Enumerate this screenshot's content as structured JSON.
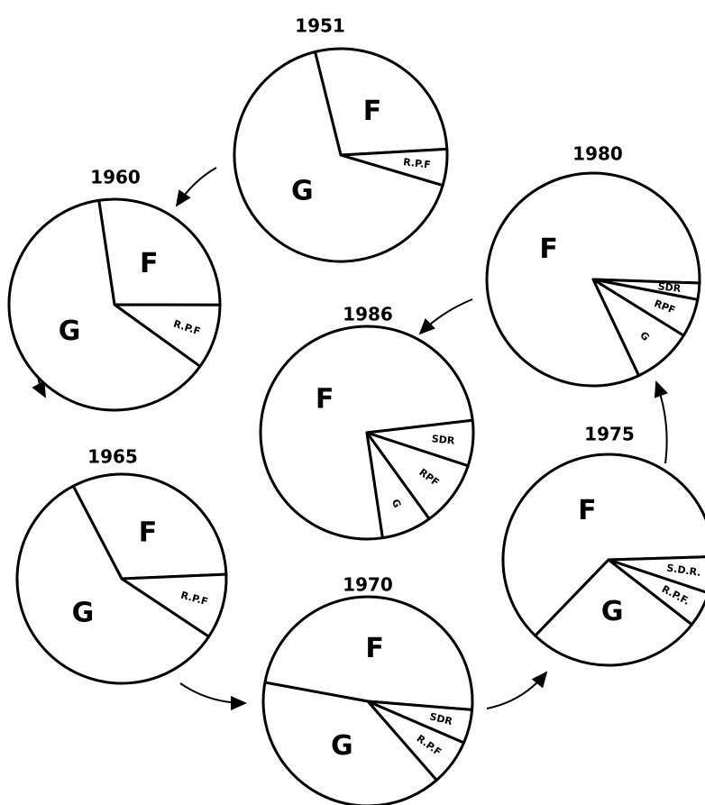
{
  "chart_data": [
    {
      "type": "pie",
      "title": "1951",
      "categories": [
        "F",
        "R.P.F",
        "G"
      ],
      "values": [
        28,
        5.5,
        66.5
      ]
    },
    {
      "type": "pie",
      "title": "1960",
      "categories": [
        "F",
        "R.P.F",
        "G"
      ],
      "values": [
        27.4,
        9.9,
        62.7
      ]
    },
    {
      "type": "pie",
      "title": "1965",
      "categories": [
        "F",
        "R.P.F",
        "G"
      ],
      "values": [
        32,
        10,
        58
      ]
    },
    {
      "type": "pie",
      "title": "1970",
      "categories": [
        "F",
        "SDR",
        "R.P.F",
        "G"
      ],
      "values": [
        48.4,
        5.2,
        7.1,
        39.3
      ]
    },
    {
      "type": "pie",
      "title": "1975",
      "categories": [
        "F",
        "S.D.R.",
        "R.P.F.",
        "G"
      ],
      "values": [
        62.3,
        5.6,
        5.4,
        26.7
      ]
    },
    {
      "type": "pie",
      "title": "1980",
      "categories": [
        "F",
        "SDR",
        "RPF",
        "G"
      ],
      "values": [
        82.6,
        2.5,
        5.8,
        9.1
      ]
    },
    {
      "type": "pie",
      "title": "1986",
      "categories": [
        "F",
        "SDR",
        "RPF",
        "G"
      ],
      "values": [
        75.5,
        6.9,
        10,
        7.6
      ]
    }
  ]
}
